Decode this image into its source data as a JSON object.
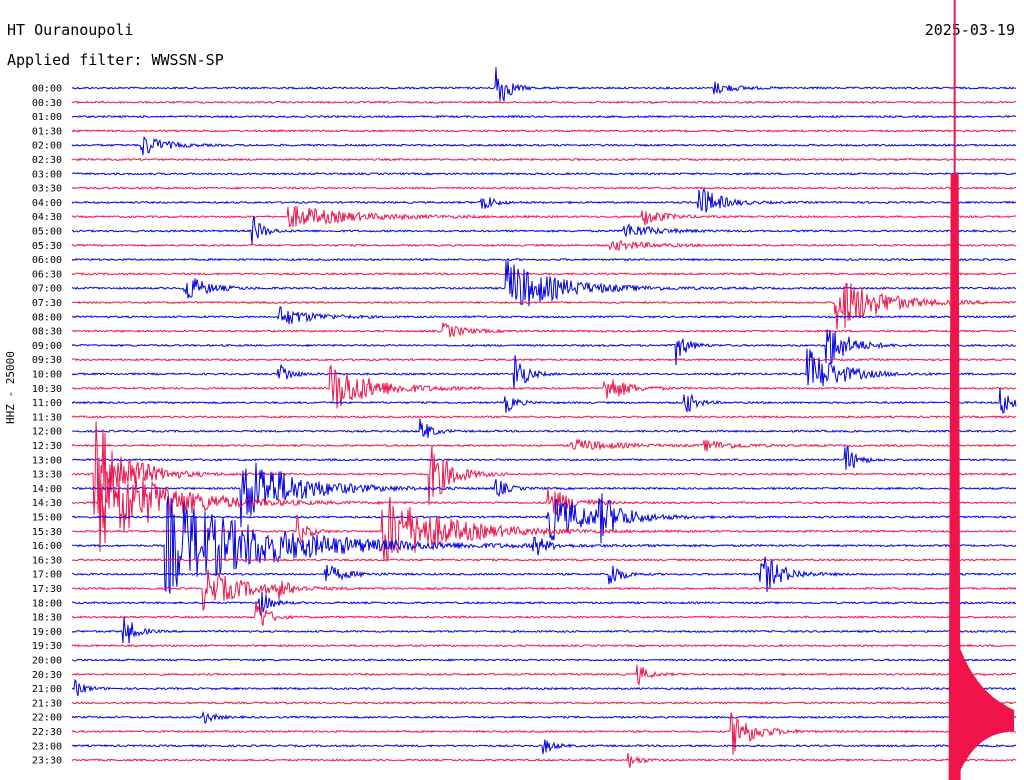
{
  "header": {
    "station": "HT Ouranoupoli",
    "filter": "Applied filter: WWSSN-SP",
    "date": "2025-03-19",
    "channel_label": "HHZ - 25000"
  },
  "colors": {
    "blue": "#0000e6",
    "red": "#f0144b",
    "background": "#ffffff"
  },
  "chart_data": {
    "type": "line",
    "title": "HT Ouranoupoli",
    "subtitle": "Applied filter: WWSSN-SP",
    "date": "2025-03-19",
    "ylabel": "HHZ - 25000",
    "row_interval_minutes": 30,
    "trace_colors_alternating": [
      "blue",
      "red"
    ],
    "y_tick_labels": [
      "00:00",
      "00:30",
      "01:00",
      "01:30",
      "02:00",
      "02:30",
      "03:00",
      "03:30",
      "04:00",
      "04:30",
      "05:00",
      "05:30",
      "06:00",
      "06:30",
      "07:00",
      "07:30",
      "08:00",
      "08:30",
      "09:00",
      "09:30",
      "10:00",
      "10:30",
      "11:00",
      "11:30",
      "12:00",
      "12:30",
      "13:00",
      "13:30",
      "14:00",
      "14:30",
      "15:00",
      "15:30",
      "16:00",
      "16:30",
      "17:00",
      "17:30",
      "18:00",
      "18:30",
      "19:00",
      "19:30",
      "20:00",
      "20:30",
      "21:00",
      "21:30",
      "22:00",
      "22:30",
      "23:00",
      "23:30"
    ],
    "events": [
      {
        "row": 0,
        "x": 0.45,
        "amplitude": 2.2,
        "duration": 0.01
      },
      {
        "row": 0,
        "x": 0.68,
        "amplitude": 0.5,
        "duration": 0.02
      },
      {
        "row": 4,
        "x": 0.075,
        "amplitude": 0.9,
        "duration": 0.02
      },
      {
        "row": 8,
        "x": 0.435,
        "amplitude": 0.8,
        "duration": 0.01
      },
      {
        "row": 8,
        "x": 0.665,
        "amplitude": 1.3,
        "duration": 0.02
      },
      {
        "row": 9,
        "x": 0.23,
        "amplitude": 0.9,
        "duration": 0.06
      },
      {
        "row": 9,
        "x": 0.605,
        "amplitude": 0.7,
        "duration": 0.02
      },
      {
        "row": 10,
        "x": 0.192,
        "amplitude": 1.2,
        "duration": 0.01
      },
      {
        "row": 10,
        "x": 0.585,
        "amplitude": 0.6,
        "duration": 0.03
      },
      {
        "row": 11,
        "x": 0.57,
        "amplitude": 0.4,
        "duration": 0.04
      },
      {
        "row": 14,
        "x": 0.12,
        "amplitude": 1.2,
        "duration": 0.02
      },
      {
        "row": 14,
        "x": 0.46,
        "amplitude": 2.2,
        "duration": 0.05
      },
      {
        "row": 15,
        "x": 0.81,
        "amplitude": 2.5,
        "duration": 0.04
      },
      {
        "row": 16,
        "x": 0.22,
        "amplitude": 0.8,
        "duration": 0.03
      },
      {
        "row": 17,
        "x": 0.395,
        "amplitude": 0.6,
        "duration": 0.02
      },
      {
        "row": 18,
        "x": 0.64,
        "amplitude": 1.5,
        "duration": 0.01
      },
      {
        "row": 18,
        "x": 0.8,
        "amplitude": 2.0,
        "duration": 0.02
      },
      {
        "row": 20,
        "x": 0.22,
        "amplitude": 1.0,
        "duration": 0.01
      },
      {
        "row": 20,
        "x": 0.47,
        "amplitude": 1.8,
        "duration": 0.01
      },
      {
        "row": 20,
        "x": 0.78,
        "amplitude": 2.0,
        "duration": 0.03
      },
      {
        "row": 21,
        "x": 0.275,
        "amplitude": 2.0,
        "duration": 0.04
      },
      {
        "row": 21,
        "x": 0.565,
        "amplitude": 1.2,
        "duration": 0.02
      },
      {
        "row": 22,
        "x": 0.46,
        "amplitude": 0.8,
        "duration": 0.01
      },
      {
        "row": 22,
        "x": 0.65,
        "amplitude": 1.0,
        "duration": 0.01
      },
      {
        "row": 22,
        "x": 0.985,
        "amplitude": 1.2,
        "duration": 0.01
      },
      {
        "row": 24,
        "x": 0.37,
        "amplitude": 1.0,
        "duration": 0.01
      },
      {
        "row": 25,
        "x": 0.53,
        "amplitude": 0.5,
        "duration": 0.04
      },
      {
        "row": 25,
        "x": 0.67,
        "amplitude": 0.4,
        "duration": 0.03
      },
      {
        "row": 26,
        "x": 0.82,
        "amplitude": 1.3,
        "duration": 0.01
      },
      {
        "row": 27,
        "x": 0.025,
        "amplitude": 4.5,
        "duration": 0.03
      },
      {
        "row": 27,
        "x": 0.38,
        "amplitude": 2.5,
        "duration": 0.02
      },
      {
        "row": 28,
        "x": 0.18,
        "amplitude": 3.0,
        "duration": 0.05
      },
      {
        "row": 28,
        "x": 0.45,
        "amplitude": 0.8,
        "duration": 0.01
      },
      {
        "row": 29,
        "x": 0.03,
        "amplitude": 4.0,
        "duration": 0.06
      },
      {
        "row": 29,
        "x": 0.505,
        "amplitude": 1.5,
        "duration": 0.02
      },
      {
        "row": 30,
        "x": 0.505,
        "amplitude": 2.0,
        "duration": 0.04
      },
      {
        "row": 30,
        "x": 0.56,
        "amplitude": 1.5,
        "duration": 0.02
      },
      {
        "row": 31,
        "x": 0.24,
        "amplitude": 1.2,
        "duration": 0.01
      },
      {
        "row": 31,
        "x": 0.33,
        "amplitude": 3.0,
        "duration": 0.06
      },
      {
        "row": 32,
        "x": 0.1,
        "amplitude": 4.0,
        "duration": 0.1
      },
      {
        "row": 32,
        "x": 0.49,
        "amplitude": 1.0,
        "duration": 0.01
      },
      {
        "row": 34,
        "x": 0.27,
        "amplitude": 0.7,
        "duration": 0.02
      },
      {
        "row": 34,
        "x": 0.57,
        "amplitude": 1.2,
        "duration": 0.01
      },
      {
        "row": 34,
        "x": 0.73,
        "amplitude": 1.8,
        "duration": 0.02
      },
      {
        "row": 35,
        "x": 0.14,
        "amplitude": 1.6,
        "duration": 0.04
      },
      {
        "row": 35,
        "x": 0.22,
        "amplitude": 0.6,
        "duration": 0.01
      },
      {
        "row": 36,
        "x": 0.2,
        "amplitude": 1.0,
        "duration": 0.01
      },
      {
        "row": 37,
        "x": 0.195,
        "amplitude": 1.8,
        "duration": 0.01
      },
      {
        "row": 38,
        "x": 0.055,
        "amplitude": 1.5,
        "duration": 0.01
      },
      {
        "row": 41,
        "x": 0.6,
        "amplitude": 0.8,
        "duration": 0.01
      },
      {
        "row": 42,
        "x": 0.005,
        "amplitude": 0.6,
        "duration": 0.01
      },
      {
        "row": 44,
        "x": 0.14,
        "amplitude": 0.5,
        "duration": 0.01
      },
      {
        "row": 45,
        "x": 0.7,
        "amplitude": 1.8,
        "duration": 0.02
      },
      {
        "row": 46,
        "x": 0.5,
        "amplitude": 0.6,
        "duration": 0.01
      },
      {
        "row": 47,
        "x": 0.59,
        "amplitude": 0.6,
        "duration": 0.01
      }
    ],
    "major_event": {
      "start_row": 42,
      "x": 0.935,
      "amplitude": 6.0,
      "coda_rows": 5
    }
  }
}
